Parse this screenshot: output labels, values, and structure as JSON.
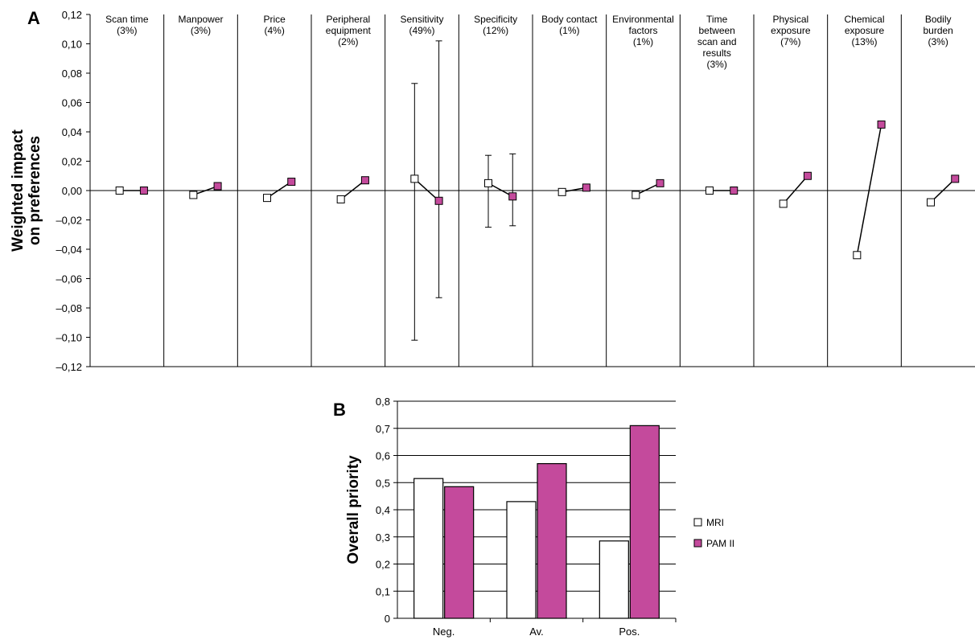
{
  "chart_data": [
    {
      "panel": "A",
      "type": "scatter",
      "ylabel": [
        "Weighted impact",
        "on preferences"
      ],
      "ylim": [
        -0.12,
        0.12
      ],
      "yticks": [
        0.12,
        0.1,
        0.08,
        0.06,
        0.04,
        0.02,
        0.0,
        -0.02,
        -0.04,
        -0.06,
        -0.08,
        -0.1,
        -0.12
      ],
      "ytick_labels": [
        "0,12",
        "0,10",
        "0,08",
        "0,06",
        "0,04",
        "0,02",
        "0,00",
        "–0,02",
        "–0,04",
        "–0,06",
        "–0,08",
        "–0,10",
        "–0,12"
      ],
      "grid": false,
      "categories": [
        {
          "label": [
            "Scan time",
            "(3%)"
          ],
          "mri": 0.0,
          "pam": 0.0
        },
        {
          "label": [
            "Manpower",
            "(3%)"
          ],
          "mri": -0.003,
          "pam": 0.003
        },
        {
          "label": [
            "Price",
            "(4%)"
          ],
          "mri": -0.005,
          "pam": 0.006
        },
        {
          "label": [
            "Peripheral",
            "equipment",
            "(2%)"
          ],
          "mri": -0.006,
          "pam": 0.007
        },
        {
          "label": [
            "Sensitivity",
            "(49%)"
          ],
          "mri": 0.008,
          "pam": -0.007,
          "mri_err": [
            -0.102,
            0.073
          ],
          "pam_err": [
            -0.073,
            0.102
          ]
        },
        {
          "label": [
            "Specificity",
            "(12%)"
          ],
          "mri": 0.005,
          "pam": -0.004,
          "mri_err": [
            -0.025,
            0.024
          ],
          "pam_err": [
            -0.024,
            0.025
          ]
        },
        {
          "label": [
            "Body contact",
            "(1%)"
          ],
          "mri": -0.001,
          "pam": 0.002
        },
        {
          "label": [
            "Environmental",
            "factors",
            "(1%)"
          ],
          "mri": -0.003,
          "pam": 0.005
        },
        {
          "label": [
            "Time",
            "between",
            "scan and",
            "results",
            "(3%)"
          ],
          "mri": 0.0,
          "pam": 0.0
        },
        {
          "label": [
            "Physical",
            "exposure",
            "(7%)"
          ],
          "mri": -0.009,
          "pam": 0.01
        },
        {
          "label": [
            "Chemical",
            "exposure",
            "(13%)"
          ],
          "mri": -0.044,
          "pam": 0.045
        },
        {
          "label": [
            "Bodily",
            "burden",
            "(3%)"
          ],
          "mri": -0.008,
          "pam": 0.008
        }
      ]
    },
    {
      "panel": "B",
      "type": "bar",
      "ylabel": "Overall priority",
      "ylim": [
        0,
        0.8
      ],
      "yticks": [
        0,
        0.1,
        0.2,
        0.3,
        0.4,
        0.5,
        0.6,
        0.7,
        0.8
      ],
      "ytick_labels": [
        "0",
        "0,1",
        "0,2",
        "0,3",
        "0,4",
        "0,5",
        "0,6",
        "0,7",
        "0,8"
      ],
      "grid": true,
      "legend_position": "right",
      "categories": [
        "Neg.",
        "Av.",
        "Pos."
      ],
      "series": [
        {
          "name": "MRI",
          "values": [
            0.515,
            0.43,
            0.285
          ],
          "color": "#ffffff"
        },
        {
          "name": "PAM II",
          "values": [
            0.485,
            0.57,
            0.71
          ],
          "color": "#c44a9c"
        }
      ]
    }
  ]
}
